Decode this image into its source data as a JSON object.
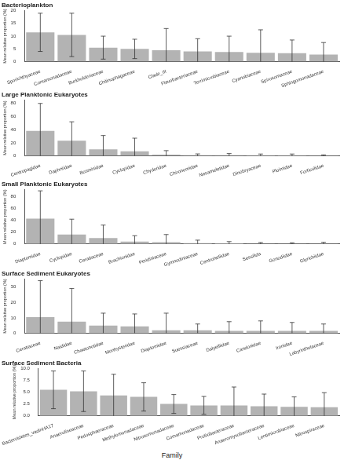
{
  "x_label": "Family",
  "chart_data": [
    {
      "type": "bar",
      "title": "Bacterioplankton",
      "y_label": "Mean relative proportion (%)",
      "categories": [
        "Sporichthyaceae",
        "Comamonadaceae",
        "Burkholderiaceae",
        "Chitinophagaceae",
        "Clade_III",
        "Flavobacteriaceae",
        "Terrimicrobiaceae",
        "Cyanobiaceae",
        "Spirosomaceae",
        "Sphingomonadaceae"
      ],
      "values": [
        11.5,
        10.5,
        5.5,
        5.0,
        4.5,
        4.0,
        3.8,
        3.5,
        3.3,
        2.8
      ],
      "errors": [
        7.5,
        8.5,
        4.5,
        3.8,
        8.5,
        5.0,
        6.2,
        9.0,
        5.2,
        4.7
      ],
      "color": "#b3b3b3",
      "ylim": [
        0,
        20
      ],
      "yticks": [
        0,
        5,
        10,
        15,
        20
      ],
      "grid": false
    },
    {
      "type": "bar",
      "title": "Large Planktonic Eukaryotes",
      "y_label": "Mean relative proportion (%)",
      "categories": [
        "Centropagidae",
        "Daphniidae",
        "Bosminidae",
        "Cyclopidae",
        "Chydoridae",
        "Chironomidae",
        "Nesameletidae",
        "Dinobryaceae",
        "Ploimidae",
        "Forficulidae"
      ],
      "values": [
        38,
        23,
        10,
        7,
        2,
        1,
        1,
        0.8,
        0.8,
        0.5
      ],
      "errors": [
        42,
        29,
        21,
        20,
        6,
        2,
        2.5,
        2,
        2,
        1
      ],
      "color": "#b3b3b3",
      "ylim": [
        0,
        85
      ],
      "yticks": [
        0,
        20,
        40,
        60,
        80
      ],
      "grid": false
    },
    {
      "type": "bar",
      "title": "Small Planktonic Eukaryotes",
      "y_label": "Mean relative proportion (%)",
      "categories": [
        "Diaptomidae",
        "Cyclopidae",
        "Ceratiaceae",
        "Brachionidae",
        "Peridiniaceae",
        "Gymnodiniaceae",
        "Centroheliidae",
        "Sessilida",
        "Gonodiidae",
        "Glyrichiidae"
      ],
      "values": [
        43,
        16,
        10,
        4,
        3,
        1.5,
        1,
        0.5,
        0.5,
        0.5
      ],
      "errors": [
        47,
        26,
        22,
        10,
        13,
        5,
        3,
        2,
        1.5,
        2.5
      ],
      "color": "#b3b3b3",
      "ylim": [
        0,
        92
      ],
      "yticks": [
        0,
        20,
        40,
        60,
        80
      ],
      "grid": false
    },
    {
      "type": "bar",
      "title": "Surface Sediment Eukaryotes",
      "y_label": "Mean relative proportion (%)",
      "categories": [
        "Ceratiaceae",
        "Naididae",
        "Chaetonotidae",
        "Monhysteridae",
        "Diaptomidae",
        "Suessiaceae",
        "Dalyelliidae",
        "Candonidae",
        "Ironidae",
        "Labyrinthulaceae"
      ],
      "values": [
        10.5,
        7.5,
        5,
        4.5,
        2,
        2,
        1.5,
        1.5,
        1.5,
        1.5
      ],
      "errors": [
        23.5,
        21.5,
        8,
        8,
        11,
        4,
        6,
        6.5,
        5.5,
        4.5
      ],
      "color": "#b3b3b3",
      "ylim": [
        0,
        35
      ],
      "yticks": [
        0,
        10,
        20,
        30
      ],
      "grid": false
    },
    {
      "type": "bar",
      "title": "Surface Sediment Bacteria",
      "y_label": "Mean relative proportion (%)",
      "categories": [
        "Bacteroidetes_vadinHA17",
        "Anaerolineaceae",
        "Pedosphaeraceae",
        "Methylomonadaceae",
        "Nitrosomonadaceae",
        "Comamonadaceae",
        "Prolixibacteraceae",
        "Anaeromyxobacteraceae",
        "Lentimicrobiaceae",
        "Nitrospiraceae"
      ],
      "values": [
        5.5,
        5.2,
        4.3,
        4.0,
        2.5,
        2.2,
        2.2,
        2.0,
        1.9,
        1.8
      ],
      "errors": [
        4,
        4.3,
        4.5,
        3,
        2,
        1.9,
        3.9,
        2.6,
        2.1,
        3.1
      ],
      "color": "#b3b3b3",
      "ylim": [
        0,
        10
      ],
      "yticks": [
        {
          "value": 0,
          "label": "0.0"
        },
        {
          "value": 2.5,
          "label": "2.5"
        },
        {
          "value": 5,
          "label": "5.0"
        },
        {
          "value": 7.5,
          "label": "7.5"
        },
        {
          "value": 10,
          "label": "10.0"
        }
      ],
      "grid": false
    }
  ]
}
